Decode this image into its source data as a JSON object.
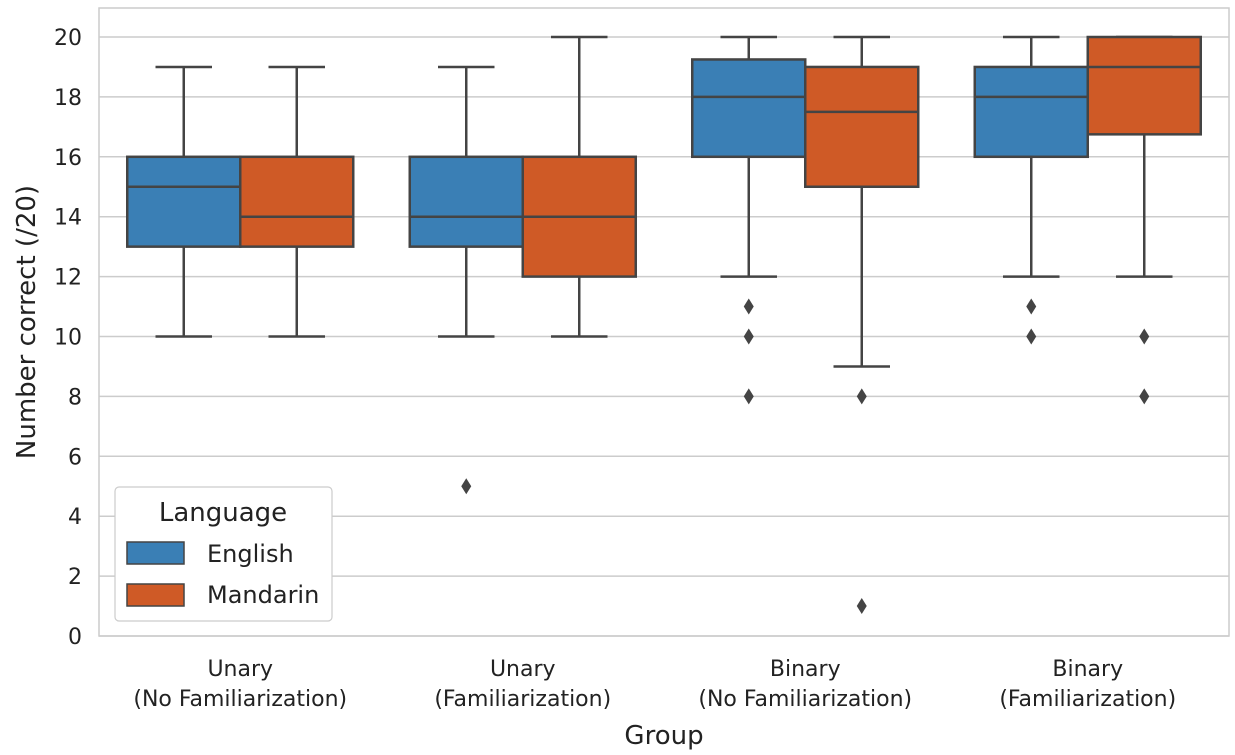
{
  "chart_data": {
    "type": "box",
    "title": "",
    "xlabel": "Group",
    "ylabel": "Number correct (/20)",
    "ylim": [
      0,
      21
    ],
    "yticks": [
      0,
      2,
      4,
      6,
      8,
      10,
      12,
      14,
      16,
      18,
      20
    ],
    "grid": "horizontal",
    "legend": {
      "title": "Language",
      "placement": "lower-left"
    },
    "categories": [
      [
        "Unary",
        "(No Familiarization)"
      ],
      [
        "Unary",
        "(Familiarization)"
      ],
      [
        "Binary",
        "(No Familiarization)"
      ],
      [
        "Binary",
        "(Familiarization)"
      ]
    ],
    "series": [
      {
        "name": "English",
        "color": "#3a7fb5",
        "boxes": [
          {
            "whisker_low": 10,
            "q1": 13,
            "median": 15,
            "q3": 16,
            "whisker_high": 19,
            "outliers": []
          },
          {
            "whisker_low": 10,
            "q1": 13,
            "median": 14,
            "q3": 16,
            "whisker_high": 19,
            "outliers": [
              5
            ]
          },
          {
            "whisker_low": 12,
            "q1": 16,
            "median": 18,
            "q3": 19.25,
            "whisker_high": 20,
            "outliers": [
              11,
              10,
              8
            ]
          },
          {
            "whisker_low": 12,
            "q1": 16,
            "median": 18,
            "q3": 19,
            "whisker_high": 20,
            "outliers": [
              11,
              10
            ]
          }
        ]
      },
      {
        "name": "Mandarin",
        "color": "#cf5a26",
        "boxes": [
          {
            "whisker_low": 10,
            "q1": 13,
            "median": 14,
            "q3": 16,
            "whisker_high": 19,
            "outliers": []
          },
          {
            "whisker_low": 10,
            "q1": 12,
            "median": 14,
            "q3": 16,
            "whisker_high": 20,
            "outliers": []
          },
          {
            "whisker_low": 9,
            "q1": 15,
            "median": 17.5,
            "q3": 19,
            "whisker_high": 20,
            "outliers": [
              8,
              1
            ]
          },
          {
            "whisker_low": 12,
            "q1": 16.75,
            "median": 19,
            "q3": 20,
            "whisker_high": 20,
            "outliers": [
              10,
              8
            ]
          }
        ]
      }
    ]
  }
}
